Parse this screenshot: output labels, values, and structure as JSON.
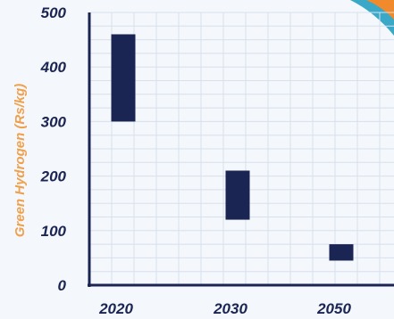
{
  "chart_data": {
    "type": "bar",
    "subtype": "floating-range",
    "categories": [
      "2020",
      "2030",
      "2050"
    ],
    "series": [
      {
        "ranges": [
          [
            300,
            460
          ],
          [
            120,
            210
          ],
          [
            45,
            75
          ]
        ]
      }
    ],
    "ylabel": "Green Hydrogen (Rs/kg)",
    "xlabel": "",
    "y_ticks": [
      "500",
      "400",
      "300",
      "200",
      "100",
      "0"
    ],
    "ylim": [
      0,
      500
    ],
    "grid": true,
    "colors": {
      "bar": "#1b2553",
      "axis": "#1b2553",
      "tick_text": "#1b2553",
      "ylabel": "#f0a04b",
      "grid": "#d7e0ec",
      "background": "#f4f7fb",
      "corner_teal": "#3aa9c8",
      "corner_orange": "#f08a2c"
    }
  }
}
